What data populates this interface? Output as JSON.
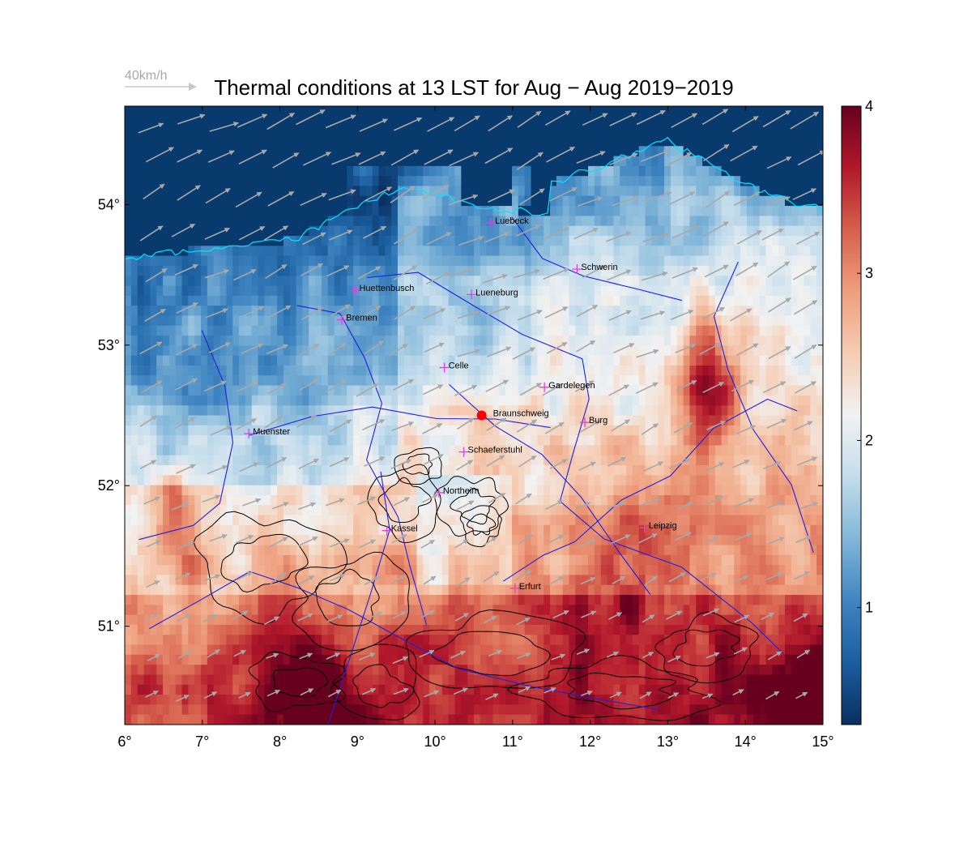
{
  "title": "Thermal conditions at 13 LST for Aug − Aug  2019−2019",
  "wind_legend": {
    "label": "40km/h"
  },
  "map": {
    "lon_range": [
      6,
      15
    ],
    "lat_range": [
      50.3,
      54.7
    ],
    "x_ticks": [
      {
        "value": 6,
        "label": "6°"
      },
      {
        "value": 7,
        "label": "7°"
      },
      {
        "value": 8,
        "label": "8°"
      },
      {
        "value": 9,
        "label": "9°"
      },
      {
        "value": 10,
        "label": "10°"
      },
      {
        "value": 11,
        "label": "11°"
      },
      {
        "value": 12,
        "label": "12°"
      },
      {
        "value": 13,
        "label": "13°"
      },
      {
        "value": 14,
        "label": "14°"
      },
      {
        "value": 15,
        "label": "15°"
      }
    ],
    "y_ticks": [
      {
        "value": 51,
        "label": "51°"
      },
      {
        "value": 52,
        "label": "52°"
      },
      {
        "value": 53,
        "label": "53°"
      },
      {
        "value": 54,
        "label": "54°"
      }
    ],
    "cities": [
      {
        "name": "Luebeck",
        "lon": 10.72,
        "lat": 53.87
      },
      {
        "name": "Schwerin",
        "lon": 11.83,
        "lat": 53.54
      },
      {
        "name": "Huettenbusch",
        "lon": 8.97,
        "lat": 53.39
      },
      {
        "name": "Lueneburg",
        "lon": 10.47,
        "lat": 53.36
      },
      {
        "name": "Bremen",
        "lon": 8.8,
        "lat": 53.18
      },
      {
        "name": "Celle",
        "lon": 10.12,
        "lat": 52.84
      },
      {
        "name": "Gardelegen",
        "lon": 11.41,
        "lat": 52.7
      },
      {
        "name": "Braunschweig",
        "lon": 10.6,
        "lat": 52.5,
        "highlight": true
      },
      {
        "name": "Burg",
        "lon": 11.93,
        "lat": 52.45
      },
      {
        "name": "Muenster",
        "lon": 7.6,
        "lat": 52.37
      },
      {
        "name": "Schaeferstuhl",
        "lon": 10.37,
        "lat": 52.24
      },
      {
        "name": "Northeim",
        "lon": 10.05,
        "lat": 51.95
      },
      {
        "name": "Leipzig",
        "lon": 12.7,
        "lat": 51.7
      },
      {
        "name": "Kassel",
        "lon": 9.38,
        "lat": 51.68
      },
      {
        "name": "Erfurt",
        "lon": 11.03,
        "lat": 51.27
      }
    ],
    "colors": {
      "city_marker": "#e040e0",
      "highlight_marker": "#ff0000",
      "rivers": "#2020e0",
      "coast": "#00e5ff",
      "contours": "#000000",
      "wind_arrows": "#a8a8a8"
    }
  },
  "colorbar": {
    "range": [
      0.3,
      4
    ],
    "ticks": [
      {
        "value": 1,
        "label": "1"
      },
      {
        "value": 2,
        "label": "2"
      },
      {
        "value": 3,
        "label": "3"
      },
      {
        "value": 4,
        "label": "4"
      }
    ],
    "colormap": "blue-white-red diverging"
  }
}
